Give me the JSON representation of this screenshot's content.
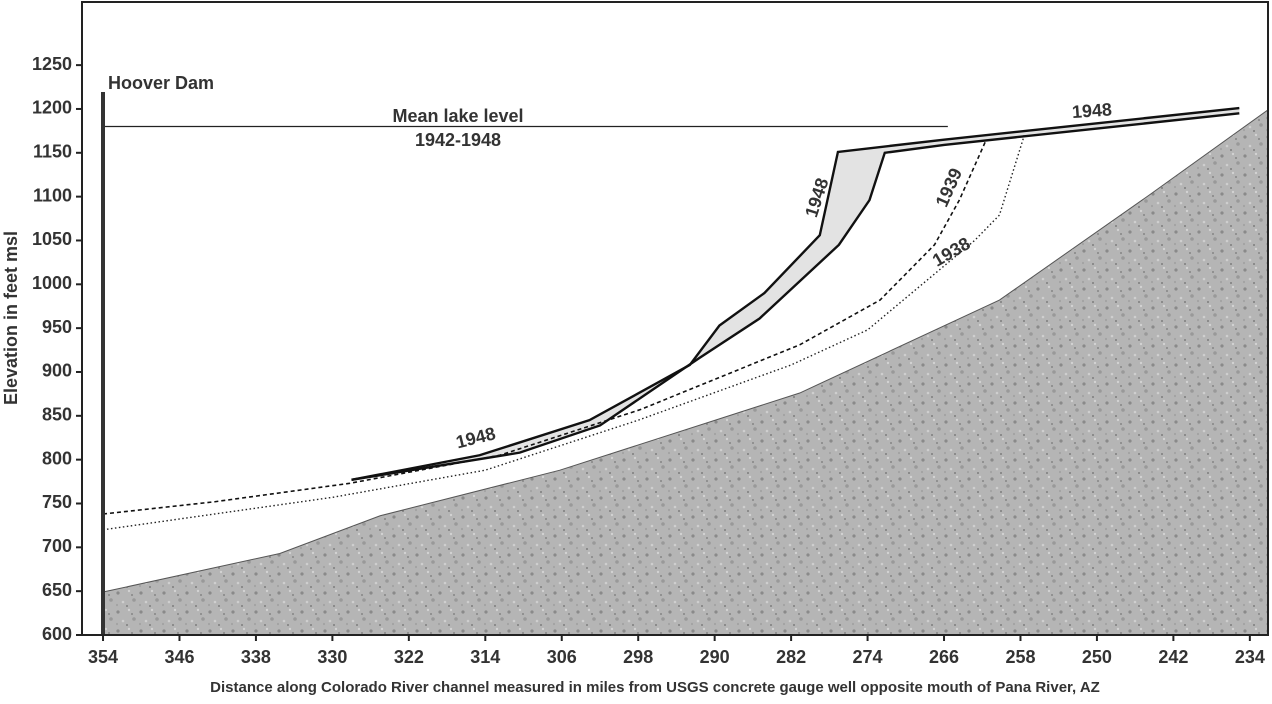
{
  "chart_data": {
    "type": "line",
    "xlabel": "Distance along Colorado River channel measured in miles from USGS concrete gauge well opposite mouth of Pana River, AZ",
    "ylabel": "Elevation in feet msl",
    "xlim": [
      356.2,
      232.1
    ],
    "ylim": [
      600,
      1322
    ],
    "xticks": [
      354,
      346,
      338,
      330,
      322,
      314,
      306,
      298,
      290,
      282,
      274,
      266,
      258,
      250,
      242,
      234
    ],
    "yticks": [
      600,
      650,
      700,
      750,
      800,
      850,
      900,
      950,
      1000,
      1050,
      1100,
      1150,
      1200,
      1250
    ],
    "annotations": [
      "Hoover Dam",
      "Mean lake level",
      "1942-1948",
      "1948",
      "1948",
      "1948",
      "1939",
      "1938"
    ],
    "series": [
      {
        "style": "ground",
        "color": "#b5b5b5",
        "x": [
          354,
          335.5,
          325,
          306.2,
          281.1,
          260.2,
          244.5,
          232.1
        ],
        "values": [
          649,
          693,
          736,
          788,
          876,
          982,
          1102,
          1199
        ]
      },
      {
        "style": "solid",
        "color": "#222222",
        "x": [
          354,
          265.6
        ],
        "values": [
          1180,
          1180
        ]
      },
      {
        "style": "dotted",
        "color": "#222222",
        "x": [
          354,
          330,
          314,
          298,
          282,
          274,
          262.8,
          260.2,
          257.6
        ],
        "values": [
          720,
          757,
          788,
          845,
          908,
          948,
          1050,
          1079,
          1170
        ]
      },
      {
        "style": "dashed",
        "color": "#111111",
        "x": [
          354,
          342.3,
          328.2,
          312.5,
          297.8,
          281.1,
          272.7,
          267,
          264.4,
          261.7
        ],
        "values": [
          738,
          752,
          773,
          805,
          857,
          931,
          982,
          1045,
          1096,
          1162
        ]
      },
      {
        "style": "thick",
        "color": "#111111",
        "x": [
          328.0,
          314.6,
          303.1,
          292.6,
          289.5,
          284.8,
          279,
          277.1,
          266,
          235.1
        ],
        "values": [
          777,
          805,
          845,
          908,
          953,
          990,
          1056,
          1151,
          1165,
          1201
        ]
      },
      {
        "style": "thick",
        "color": "#111111",
        "x": [
          328.0,
          310.4,
          302,
          291.6,
          285.3,
          277,
          273.8,
          272.2,
          266,
          235.1
        ],
        "values": [
          777,
          808,
          839,
          916,
          961,
          1045,
          1096,
          1150,
          1159,
          1195
        ]
      }
    ],
    "fill_between": {
      "series": [
        4,
        5
      ],
      "color": "#e3e3e3"
    }
  }
}
